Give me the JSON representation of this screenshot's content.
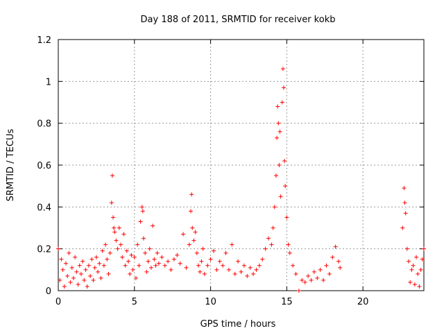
{
  "colors": {
    "series": "#ff0000",
    "axis": "#000000",
    "grid": "#999999"
  },
  "chart_data": {
    "type": "scatter",
    "title": "Day 188 of 2011, SRMTID for receiver kokb",
    "xlabel": "GPS time / hours",
    "ylabel": "SRMTID / TECUs",
    "xlim": [
      0,
      24
    ],
    "ylim": [
      0,
      1.2
    ],
    "xticks": [
      0,
      5,
      10,
      15,
      20
    ],
    "yticks": [
      0,
      0.2,
      0.4,
      0.6,
      0.8,
      1,
      1.2
    ],
    "ytick_labels": [
      "0",
      "0.2",
      "0.4",
      "0.6",
      "0.8",
      "1",
      "1.2"
    ],
    "grid": true,
    "marker": "+",
    "series": [
      {
        "name": "SRMTID",
        "points": [
          [
            0.0,
            0.2
          ],
          [
            0.1,
            0.05
          ],
          [
            0.2,
            0.15
          ],
          [
            0.3,
            0.1
          ],
          [
            0.4,
            0.02
          ],
          [
            0.5,
            0.13
          ],
          [
            0.6,
            0.07
          ],
          [
            0.7,
            0.18
          ],
          [
            0.8,
            0.04
          ],
          [
            0.9,
            0.11
          ],
          [
            1.0,
            0.06
          ],
          [
            1.1,
            0.16
          ],
          [
            1.2,
            0.09
          ],
          [
            1.3,
            0.03
          ],
          [
            1.4,
            0.12
          ],
          [
            1.5,
            0.08
          ],
          [
            1.6,
            0.14
          ],
          [
            1.7,
            0.05
          ],
          [
            1.8,
            0.1
          ],
          [
            1.9,
            0.02
          ],
          [
            2.0,
            0.12
          ],
          [
            2.1,
            0.07
          ],
          [
            2.2,
            0.15
          ],
          [
            2.3,
            0.05
          ],
          [
            2.4,
            0.11
          ],
          [
            2.5,
            0.16
          ],
          [
            2.6,
            0.09
          ],
          [
            2.7,
            0.13
          ],
          [
            2.8,
            0.06
          ],
          [
            2.9,
            0.19
          ],
          [
            3.0,
            0.12
          ],
          [
            3.1,
            0.22
          ],
          [
            3.2,
            0.15
          ],
          [
            3.3,
            0.08
          ],
          [
            3.4,
            0.18
          ],
          [
            3.5,
            0.42
          ],
          [
            3.55,
            0.55
          ],
          [
            3.6,
            0.35
          ],
          [
            3.65,
            0.3
          ],
          [
            3.7,
            0.28
          ],
          [
            3.8,
            0.24
          ],
          [
            3.9,
            0.2
          ],
          [
            4.0,
            0.3
          ],
          [
            4.1,
            0.22
          ],
          [
            4.2,
            0.16
          ],
          [
            4.3,
            0.27
          ],
          [
            4.4,
            0.12
          ],
          [
            4.5,
            0.19
          ],
          [
            4.6,
            0.14
          ],
          [
            4.7,
            0.08
          ],
          [
            4.8,
            0.17
          ],
          [
            4.9,
            0.1
          ],
          [
            5.0,
            0.16
          ],
          [
            5.1,
            0.06
          ],
          [
            5.2,
            0.22
          ],
          [
            5.3,
            0.12
          ],
          [
            5.4,
            0.33
          ],
          [
            5.5,
            0.4
          ],
          [
            5.55,
            0.38
          ],
          [
            5.6,
            0.25
          ],
          [
            5.7,
            0.18
          ],
          [
            5.8,
            0.09
          ],
          [
            5.9,
            0.14
          ],
          [
            6.0,
            0.2
          ],
          [
            6.1,
            0.11
          ],
          [
            6.2,
            0.31
          ],
          [
            6.3,
            0.15
          ],
          [
            6.4,
            0.12
          ],
          [
            6.5,
            0.18
          ],
          [
            6.6,
            0.13
          ],
          [
            6.8,
            0.16
          ],
          [
            7.0,
            0.12
          ],
          [
            7.2,
            0.14
          ],
          [
            7.4,
            0.1
          ],
          [
            7.6,
            0.15
          ],
          [
            7.8,
            0.17
          ],
          [
            8.0,
            0.13
          ],
          [
            8.2,
            0.27
          ],
          [
            8.4,
            0.11
          ],
          [
            8.6,
            0.22
          ],
          [
            8.7,
            0.38
          ],
          [
            8.75,
            0.46
          ],
          [
            8.8,
            0.3
          ],
          [
            8.9,
            0.24
          ],
          [
            9.0,
            0.28
          ],
          [
            9.1,
            0.18
          ],
          [
            9.2,
            0.12
          ],
          [
            9.3,
            0.09
          ],
          [
            9.4,
            0.14
          ],
          [
            9.5,
            0.2
          ],
          [
            9.6,
            0.08
          ],
          [
            9.8,
            0.12
          ],
          [
            10.0,
            0.15
          ],
          [
            10.2,
            0.19
          ],
          [
            10.4,
            0.1
          ],
          [
            10.6,
            0.14
          ],
          [
            10.8,
            0.12
          ],
          [
            11.0,
            0.18
          ],
          [
            11.2,
            0.1
          ],
          [
            11.4,
            0.22
          ],
          [
            11.6,
            0.08
          ],
          [
            11.8,
            0.14
          ],
          [
            12.0,
            0.09
          ],
          [
            12.2,
            0.12
          ],
          [
            12.4,
            0.07
          ],
          [
            12.6,
            0.11
          ],
          [
            12.8,
            0.08
          ],
          [
            13.0,
            0.1
          ],
          [
            13.2,
            0.12
          ],
          [
            13.4,
            0.15
          ],
          [
            13.6,
            0.2
          ],
          [
            13.8,
            0.25
          ],
          [
            14.0,
            0.22
          ],
          [
            14.1,
            0.3
          ],
          [
            14.2,
            0.4
          ],
          [
            14.3,
            0.55
          ],
          [
            14.35,
            0.73
          ],
          [
            14.4,
            0.88
          ],
          [
            14.45,
            0.8
          ],
          [
            14.5,
            0.6
          ],
          [
            14.55,
            0.76
          ],
          [
            14.6,
            0.45
          ],
          [
            14.7,
            0.9
          ],
          [
            14.75,
            1.06
          ],
          [
            14.8,
            0.97
          ],
          [
            14.85,
            0.62
          ],
          [
            14.9,
            0.5
          ],
          [
            15.0,
            0.35
          ],
          [
            15.1,
            0.22
          ],
          [
            15.2,
            0.18
          ],
          [
            15.4,
            0.12
          ],
          [
            15.6,
            0.08
          ],
          [
            15.8,
            0.0
          ],
          [
            16.0,
            0.05
          ],
          [
            16.2,
            0.04
          ],
          [
            16.4,
            0.07
          ],
          [
            16.6,
            0.05
          ],
          [
            16.8,
            0.09
          ],
          [
            17.0,
            0.06
          ],
          [
            17.2,
            0.1
          ],
          [
            17.4,
            0.05
          ],
          [
            17.6,
            0.12
          ],
          [
            17.8,
            0.08
          ],
          [
            18.0,
            0.16
          ],
          [
            18.2,
            0.21
          ],
          [
            18.4,
            0.14
          ],
          [
            18.5,
            0.11
          ],
          [
            22.6,
            0.3
          ],
          [
            22.7,
            0.49
          ],
          [
            22.75,
            0.42
          ],
          [
            22.8,
            0.37
          ],
          [
            22.9,
            0.2
          ],
          [
            23.0,
            0.14
          ],
          [
            23.1,
            0.04
          ],
          [
            23.2,
            0.1
          ],
          [
            23.3,
            0.12
          ],
          [
            23.4,
            0.03
          ],
          [
            23.5,
            0.16
          ],
          [
            23.6,
            0.08
          ],
          [
            23.7,
            0.02
          ],
          [
            23.8,
            0.1
          ],
          [
            23.9,
            0.15
          ],
          [
            24.0,
            0.2
          ]
        ]
      }
    ]
  }
}
